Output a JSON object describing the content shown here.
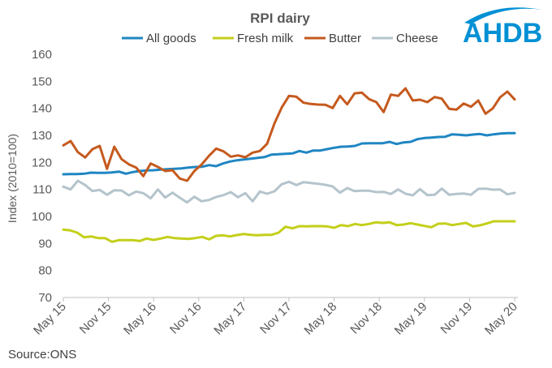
{
  "logo": {
    "text": "AHDB",
    "color": "#0090d4"
  },
  "source": "Source:ONS",
  "chart_data": {
    "type": "line",
    "title": "RPI dairy",
    "xlabel": "",
    "ylabel": "Index (2010=100)",
    "ylim": [
      70,
      160
    ],
    "yticks": [
      70,
      80,
      90,
      100,
      110,
      120,
      130,
      140,
      150,
      160
    ],
    "grid": false,
    "legend_position": "top",
    "x_start": "May 15",
    "x_end": "May 20",
    "xtick_labels": [
      "May 15",
      "Nov 15",
      "May 16",
      "Nov 16",
      "May 17",
      "Nov 17",
      "May 18",
      "Nov 18",
      "May 19",
      "Nov 19",
      "May 20"
    ],
    "series": [
      {
        "name": "All goods",
        "color": "#1f86c2",
        "values": [
          115.6,
          115.7,
          115.7,
          115.8,
          116.2,
          116.1,
          116.1,
          116.3,
          116.6,
          115.8,
          116.4,
          116.8,
          117.0,
          117.1,
          117.3,
          117.5,
          117.6,
          117.8,
          118.1,
          118.3,
          118.4,
          119.0,
          118.6,
          119.6,
          120.3,
          120.8,
          121.1,
          121.4,
          121.7,
          122.0,
          122.9,
          123.0,
          123.2,
          123.3,
          124.2,
          123.6,
          124.4,
          124.4,
          124.9,
          125.4,
          125.8,
          125.9,
          126.1,
          127.0,
          127.1,
          127.1,
          127.1,
          127.6,
          126.8,
          127.4,
          127.6,
          128.6,
          129.0,
          129.2,
          129.4,
          129.5,
          130.4,
          130.2,
          130.0,
          130.3,
          130.5,
          130.0,
          130.4,
          130.7,
          130.8,
          130.8
        ]
      },
      {
        "name": "Fresh milk",
        "color": "#c3cf19",
        "values": [
          95.1,
          94.8,
          94.0,
          92.3,
          92.6,
          92.0,
          92.0,
          90.6,
          91.2,
          91.2,
          91.2,
          90.9,
          91.8,
          91.3,
          91.8,
          92.4,
          92.0,
          91.8,
          91.7,
          92.0,
          92.4,
          91.5,
          92.8,
          93.0,
          92.6,
          93.1,
          93.5,
          93.2,
          93.0,
          93.2,
          93.2,
          94.0,
          96.2,
          95.6,
          96.4,
          96.3,
          96.4,
          96.4,
          96.3,
          95.8,
          96.8,
          96.4,
          97.2,
          96.8,
          97.2,
          97.8,
          97.6,
          97.8,
          96.8,
          97.0,
          97.5,
          97.0,
          96.5,
          96.0,
          97.3,
          97.4,
          96.8,
          97.2,
          97.6,
          96.3,
          96.7,
          97.4,
          98.2,
          98.2,
          98.2,
          98.2
        ]
      },
      {
        "name": "Butter",
        "color": "#c55a1e",
        "values": [
          126.3,
          127.9,
          123.8,
          121.8,
          124.9,
          126.1,
          117.6,
          125.8,
          121.2,
          119.3,
          118.1,
          114.9,
          119.6,
          118.3,
          116.8,
          117.1,
          114.0,
          113.2,
          116.8,
          119.2,
          122.4,
          125.1,
          124.1,
          122.1,
          122.6,
          121.9,
          123.6,
          124.2,
          126.9,
          134.4,
          140.3,
          144.6,
          144.3,
          142.1,
          141.6,
          141.4,
          141.3,
          140.1,
          144.6,
          141.5,
          145.5,
          145.8,
          143.4,
          142.3,
          138.6,
          145.1,
          144.6,
          147.4,
          142.9,
          143.2,
          142.3,
          144.2,
          143.6,
          139.8,
          139.5,
          141.8,
          140.6,
          142.9,
          138.0,
          140.0,
          144.1,
          146.2,
          143.3
        ]
      },
      {
        "name": "Cheese",
        "color": "#b4c4cc",
        "values": [
          111.0,
          110.0,
          113.2,
          111.6,
          109.4,
          109.8,
          108.0,
          109.7,
          109.6,
          107.8,
          109.2,
          108.6,
          106.7,
          110.0,
          107.0,
          108.8,
          106.9,
          105.2,
          107.3,
          105.6,
          106.1,
          107.2,
          107.9,
          109.0,
          107.1,
          108.6,
          105.6,
          109.2,
          108.4,
          109.3,
          111.9,
          112.8,
          111.6,
          112.7,
          112.4,
          112.1,
          111.7,
          111.1,
          108.8,
          110.5,
          109.4,
          109.5,
          109.5,
          109.0,
          109.1,
          108.3,
          110.0,
          108.4,
          107.8,
          110.1,
          107.9,
          108.0,
          110.3,
          108.0,
          108.3,
          108.5,
          108.0,
          110.2,
          110.3,
          109.9,
          110.0,
          108.2,
          108.7
        ]
      }
    ]
  }
}
